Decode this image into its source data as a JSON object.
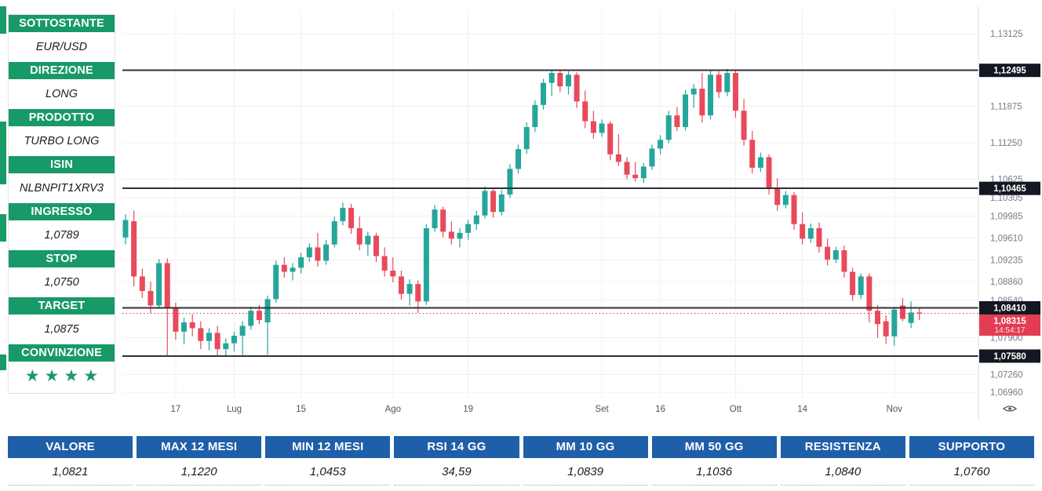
{
  "sidebar": {
    "sections": [
      {
        "label": "SOTTOSTANTE",
        "value": "EUR/USD"
      },
      {
        "label": "DIREZIONE",
        "value": "LONG"
      },
      {
        "label": "PRODOTTO",
        "value": "TURBO LONG"
      },
      {
        "label": "ISIN",
        "value": "NLBNPIT1XRV3"
      },
      {
        "label": "INGRESSO",
        "value": "1,0789"
      },
      {
        "label": "STOP",
        "value": "1,0750"
      },
      {
        "label": "TARGET",
        "value": "1,0875"
      }
    ],
    "conviction": {
      "label": "CONVINZIONE",
      "stars": 4,
      "stars_text": "★★★★"
    }
  },
  "chart_data": {
    "type": "candlestick",
    "y_axis": {
      "ticks": [
        {
          "price": 1.13125,
          "label": "1,13125"
        },
        {
          "price": 1.11875,
          "label": "1,11875"
        },
        {
          "price": 1.1125,
          "label": "1,11250"
        },
        {
          "price": 1.10625,
          "label": "1,10625"
        },
        {
          "price": 1.10305,
          "label": "1,10305"
        },
        {
          "price": 1.09985,
          "label": "1,09985"
        },
        {
          "price": 1.0961,
          "label": "1,09610"
        },
        {
          "price": 1.09235,
          "label": "1,09235"
        },
        {
          "price": 1.0886,
          "label": "1,08860"
        },
        {
          "price": 1.0854,
          "label": "1,08540"
        },
        {
          "price": 1.079,
          "label": "1,07900"
        },
        {
          "price": 1.0726,
          "label": "1,07260"
        },
        {
          "price": 1.0696,
          "label": "1,06960"
        }
      ],
      "range": [
        1.0696,
        1.13125
      ]
    },
    "x_axis": {
      "labels": [
        {
          "index": 6,
          "label": "17"
        },
        {
          "index": 13,
          "label": "Lug"
        },
        {
          "index": 21,
          "label": "15"
        },
        {
          "index": 32,
          "label": "Ago"
        },
        {
          "index": 41,
          "label": "19"
        },
        {
          "index": 57,
          "label": "Set"
        },
        {
          "index": 64,
          "label": "16"
        },
        {
          "index": 73,
          "label": "Ott"
        },
        {
          "index": 81,
          "label": "14"
        },
        {
          "index": 92,
          "label": "Nov"
        }
      ]
    },
    "level_lines": [
      {
        "price": 1.12495,
        "label": "1,12495"
      },
      {
        "price": 1.10465,
        "label": "1,10465"
      },
      {
        "price": 1.0841,
        "label": "1,08410"
      },
      {
        "price": 1.0758,
        "label": "1,07580"
      }
    ],
    "current_price": {
      "price": 1.08315,
      "label": "1,08315",
      "time": "14:54:17"
    },
    "colors": {
      "up": "#26a69a",
      "down": "#e84a5c",
      "level_line": "#2e3138",
      "level_label_bg": "#131722",
      "current_bg": "#e23d52",
      "axis_text": "#787b86",
      "x_text": "#50545c",
      "grid": "#f0f0f3"
    },
    "candles": [
      [
        1.0962,
        1.1002,
        1.095,
        1.0992
      ],
      [
        1.099,
        1.1008,
        1.0878,
        1.0895
      ],
      [
        1.0895,
        1.0908,
        1.0858,
        1.087
      ],
      [
        1.087,
        1.0886,
        1.0832,
        1.0845
      ],
      [
        1.0845,
        1.0925,
        1.084,
        1.0918
      ],
      [
        1.0918,
        1.0926,
        1.0758,
        1.084
      ],
      [
        1.084,
        1.085,
        1.0786,
        1.08
      ],
      [
        1.08,
        1.0824,
        1.0778,
        1.0816
      ],
      [
        1.0816,
        1.083,
        1.0792,
        1.0806
      ],
      [
        1.0806,
        1.0818,
        1.077,
        1.0784
      ],
      [
        1.0784,
        1.0806,
        1.0768,
        1.0798
      ],
      [
        1.0798,
        1.081,
        1.0758,
        1.077
      ],
      [
        1.077,
        1.0788,
        1.0759,
        1.078
      ],
      [
        1.078,
        1.08,
        1.0766,
        1.0793
      ],
      [
        1.0793,
        1.0818,
        1.0758,
        1.081
      ],
      [
        1.081,
        1.0843,
        1.0803,
        1.0836
      ],
      [
        1.0836,
        1.0846,
        1.0813,
        1.082
      ],
      [
        1.0816,
        1.0862,
        1.076,
        1.0856
      ],
      [
        1.0856,
        1.0922,
        1.085,
        1.0915
      ],
      [
        1.0915,
        1.0928,
        1.0893,
        1.0903
      ],
      [
        1.0903,
        1.0918,
        1.0888,
        1.091
      ],
      [
        1.091,
        1.0936,
        1.09,
        1.0928
      ],
      [
        1.0928,
        1.0952,
        1.092,
        1.0945
      ],
      [
        1.0945,
        1.097,
        1.0912,
        1.0922
      ],
      [
        1.0922,
        1.0958,
        1.0915,
        1.095
      ],
      [
        1.095,
        1.0998,
        1.0945,
        1.099
      ],
      [
        1.099,
        1.1022,
        1.0983,
        1.1013
      ],
      [
        1.1013,
        1.102,
        1.0968,
        1.0978
      ],
      [
        1.0978,
        1.0998,
        1.094,
        1.095
      ],
      [
        1.095,
        1.0972,
        1.093,
        1.0965
      ],
      [
        1.0965,
        1.097,
        1.092,
        1.093
      ],
      [
        1.093,
        1.0945,
        1.0895,
        1.0905
      ],
      [
        1.0905,
        1.0928,
        1.0885,
        1.0895
      ],
      [
        1.0895,
        1.0905,
        1.0855,
        1.0865
      ],
      [
        1.0865,
        1.089,
        1.0845,
        1.0882
      ],
      [
        1.0882,
        1.0888,
        1.0832,
        1.0852
      ],
      [
        1.0852,
        1.0985,
        1.0846,
        1.0978
      ],
      [
        1.0978,
        1.1018,
        1.0972,
        1.101
      ],
      [
        1.101,
        1.1015,
        1.0962,
        1.0972
      ],
      [
        1.0972,
        1.099,
        1.095,
        1.096
      ],
      [
        1.096,
        1.0978,
        1.0945,
        1.097
      ],
      [
        1.097,
        1.0992,
        1.0958,
        1.0985
      ],
      [
        1.0985,
        1.1008,
        1.0975,
        1.1
      ],
      [
        1.1,
        1.105,
        1.0995,
        1.1042
      ],
      [
        1.1042,
        1.1048,
        1.0996,
        1.1006
      ],
      [
        1.1006,
        1.1044,
        1.1,
        1.1036
      ],
      [
        1.1036,
        1.1088,
        1.103,
        1.108
      ],
      [
        1.108,
        1.1122,
        1.1072,
        1.1114
      ],
      [
        1.1114,
        1.116,
        1.1106,
        1.1152
      ],
      [
        1.1152,
        1.1198,
        1.1144,
        1.119
      ],
      [
        1.119,
        1.1235,
        1.1182,
        1.1228
      ],
      [
        1.1228,
        1.125,
        1.1205,
        1.1245
      ],
      [
        1.1245,
        1.125,
        1.1212,
        1.1222
      ],
      [
        1.1222,
        1.1248,
        1.1208,
        1.1242
      ],
      [
        1.1242,
        1.1246,
        1.1185,
        1.1196
      ],
      [
        1.1196,
        1.1215,
        1.115,
        1.1162
      ],
      [
        1.1162,
        1.118,
        1.1132,
        1.1142
      ],
      [
        1.1142,
        1.1165,
        1.1135,
        1.1158
      ],
      [
        1.1158,
        1.1162,
        1.1095,
        1.1105
      ],
      [
        1.1105,
        1.114,
        1.1085,
        1.1092
      ],
      [
        1.1092,
        1.11,
        1.1062,
        1.107
      ],
      [
        1.107,
        1.1092,
        1.1058,
        1.1064
      ],
      [
        1.1064,
        1.109,
        1.1056,
        1.1084
      ],
      [
        1.1084,
        1.1122,
        1.1078,
        1.1115
      ],
      [
        1.1115,
        1.1138,
        1.1105,
        1.113
      ],
      [
        1.113,
        1.118,
        1.1124,
        1.1172
      ],
      [
        1.1172,
        1.1186,
        1.1145,
        1.1152
      ],
      [
        1.1152,
        1.1216,
        1.1146,
        1.1208
      ],
      [
        1.1208,
        1.1226,
        1.1185,
        1.1218
      ],
      [
        1.1218,
        1.1245,
        1.116,
        1.1172
      ],
      [
        1.1172,
        1.125,
        1.1165,
        1.1242
      ],
      [
        1.1242,
        1.1248,
        1.1202,
        1.1212
      ],
      [
        1.1212,
        1.1252,
        1.1205,
        1.1245
      ],
      [
        1.1245,
        1.125,
        1.1168,
        1.118
      ],
      [
        1.118,
        1.12,
        1.112,
        1.113
      ],
      [
        1.113,
        1.1145,
        1.1072,
        1.1082
      ],
      [
        1.1082,
        1.1108,
        1.1075,
        1.11
      ],
      [
        1.11,
        1.1105,
        1.1036,
        1.1046
      ],
      [
        1.1046,
        1.1064,
        1.1008,
        1.1018
      ],
      [
        1.1018,
        1.1042,
        1.1012,
        1.1035
      ],
      [
        1.1035,
        1.104,
        1.0975,
        1.0985
      ],
      [
        1.0985,
        1.1005,
        1.095,
        1.096
      ],
      [
        1.096,
        1.0986,
        1.0953,
        1.0978
      ],
      [
        1.0978,
        1.0988,
        1.0936,
        1.0946
      ],
      [
        1.0946,
        1.096,
        1.0914,
        1.0924
      ],
      [
        1.0924,
        1.0946,
        1.0918,
        1.094
      ],
      [
        1.094,
        1.0948,
        1.0893,
        1.0903
      ],
      [
        1.0903,
        1.091,
        1.0853,
        1.0863
      ],
      [
        1.0863,
        1.09,
        1.0856,
        1.0895
      ],
      [
        1.0895,
        1.09,
        1.0816,
        1.0836
      ],
      [
        1.0836,
        1.0846,
        1.0789,
        1.0813
      ],
      [
        1.0818,
        1.0828,
        1.0779,
        1.0792
      ],
      [
        1.0792,
        1.0843,
        1.0776,
        1.0838
      ],
      [
        1.0845,
        1.0858,
        1.0818,
        1.0822
      ],
      [
        1.0815,
        1.0852,
        1.0806,
        1.0833
      ],
      [
        1.0833,
        1.0842,
        1.082,
        1.08315
      ]
    ]
  },
  "table": {
    "columns": [
      {
        "header": "VALORE",
        "value": "1,0821"
      },
      {
        "header": "MAX 12 MESI",
        "value": "1,1220"
      },
      {
        "header": "MIN 12 MESI",
        "value": "1,0453"
      },
      {
        "header": "RSI 14 GG",
        "value": "34,59"
      },
      {
        "header": "MM 10 GG",
        "value": "1,0839"
      },
      {
        "header": "MM 50 GG",
        "value": "1,1036"
      },
      {
        "header": "RESISTENZA",
        "value": "1,0840"
      },
      {
        "header": "SUPPORTO",
        "value": "1,0760"
      }
    ]
  },
  "icons": {
    "price_scale": "eye-icon"
  },
  "colors": {
    "accent_green": "#189a68",
    "table_blue": "#1f5fa9"
  }
}
